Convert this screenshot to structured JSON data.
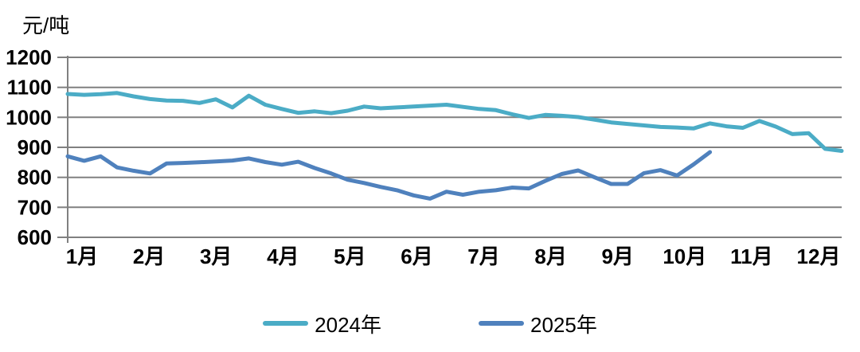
{
  "chart_data": {
    "type": "line",
    "y_unit_label": "元/吨",
    "x_tick_labels": [
      "1月",
      "2月",
      "3月",
      "4月",
      "5月",
      "6月",
      "7月",
      "8月",
      "9月",
      "10月",
      "11月",
      "12月"
    ],
    "y_ticks": [
      1200,
      1100,
      1000,
      900,
      800,
      700,
      600
    ],
    "ylim": [
      600,
      1200
    ],
    "grid": "horizontal",
    "grid_color": "#808080",
    "axis_color": "#808080",
    "text_color": "#000000",
    "background_color": "#FFFFFF",
    "legend_position": "bottom",
    "points_per_month": 4,
    "series": [
      {
        "name": "2024年",
        "color": "#4BACC6",
        "values": [
          1078,
          1075,
          1077,
          1081,
          1070,
          1061,
          1056,
          1055,
          1048,
          1060,
          1033,
          1072,
          1042,
          1028,
          1015,
          1020,
          1014,
          1022,
          1036,
          1030,
          1033,
          1036,
          1039,
          1042,
          1035,
          1028,
          1024,
          1010,
          998,
          1008,
          1005,
          1001,
          992,
          983,
          978,
          973,
          968,
          966,
          963,
          980,
          970,
          965,
          988,
          969,
          944,
          947,
          895,
          888
        ]
      },
      {
        "name": "2025年",
        "color": "#4F81BD",
        "values": [
          870,
          855,
          870,
          833,
          822,
          813,
          846,
          848,
          850,
          853,
          856,
          863,
          851,
          842,
          852,
          831,
          813,
          792,
          781,
          768,
          757,
          740,
          729,
          752,
          742,
          752,
          757,
          766,
          763,
          788,
          811,
          823,
          800,
          778,
          778,
          814,
          824,
          806,
          843,
          884
        ]
      }
    ]
  }
}
